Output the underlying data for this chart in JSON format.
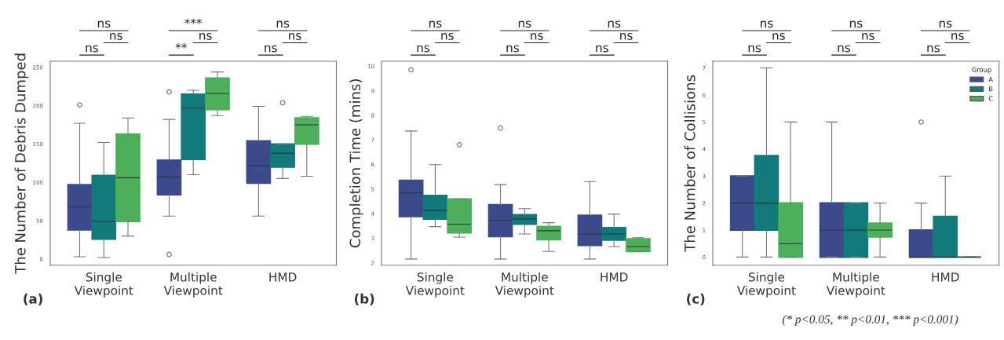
{
  "chart_data": [
    {
      "type": "box",
      "title": "(a)",
      "ylabel": "The Number of Debris Dumped",
      "categories": [
        "Single\nViewpoint",
        "Multiple\nViewpoint",
        "HMD"
      ],
      "ylim": [
        -8,
        258
      ],
      "yticks": [
        0,
        50,
        100,
        150,
        200,
        250
      ],
      "grid": false,
      "legend": false,
      "annotations": [
        "ns",
        "ns",
        "ns",
        "***",
        "ns",
        "**",
        "ns",
        "ns",
        "ns"
      ],
      "series": [
        {
          "color": "#3b4a8a",
          "boxes": [
            {
              "low": 3,
              "q1": 38,
              "median": 68,
              "q3": 97,
              "high": 177,
              "outliers": [
                201
              ]
            },
            {
              "low": 56,
              "q1": 84,
              "median": 107,
              "q3": 129,
              "high": 182,
              "outliers": [
                218,
                6
              ]
            },
            {
              "low": 56,
              "q1": 99,
              "median": 122,
              "q3": 154,
              "high": 199
            }
          ]
        },
        {
          "color": "#117a7a",
          "boxes": [
            {
              "low": 2,
              "q1": 26,
              "median": 49,
              "q3": 109,
              "high": 152
            },
            {
              "low": 110,
              "q1": 130,
              "median": 197,
              "q3": 215,
              "high": 220
            },
            {
              "low": 105,
              "q1": 120,
              "median": 138,
              "q3": 150,
              "high": 150,
              "outliers": [
                204
              ]
            }
          ]
        },
        {
          "color": "#4caf5a",
          "boxes": [
            {
              "low": 30,
              "q1": 49,
              "median": 106,
              "q3": 163,
              "high": 184
            },
            {
              "low": 187,
              "q1": 195,
              "median": 216,
              "q3": 236,
              "high": 244
            },
            {
              "low": 108,
              "q1": 150,
              "median": 175,
              "q3": 184,
              "high": 186
            }
          ]
        }
      ]
    },
    {
      "type": "box",
      "title": "(b)",
      "ylabel": "Completion Time (mins)",
      "categories": [
        "Single\nViewpoint",
        "Multiple\nViewpoint",
        "HMD"
      ],
      "ylim": [
        1.9,
        10.2
      ],
      "yticks": [
        2,
        3,
        4,
        5,
        6,
        7,
        8,
        9,
        10
      ],
      "grid": false,
      "legend": false,
      "annotations": [
        "ns",
        "ns",
        "ns",
        "ns",
        "ns",
        "ns",
        "ns",
        "ns",
        "ns"
      ],
      "series": [
        {
          "color": "#3b4a8a",
          "boxes": [
            {
              "low": 2.15,
              "q1": 3.88,
              "median": 4.84,
              "q3": 5.35,
              "high": 7.36,
              "outliers": [
                9.85
              ]
            },
            {
              "low": 2.15,
              "q1": 3.07,
              "median": 3.73,
              "q3": 4.36,
              "high": 5.18,
              "outliers": [
                7.48
              ]
            },
            {
              "low": 2.15,
              "q1": 2.71,
              "median": 3.17,
              "q3": 3.93,
              "high": 5.3
            }
          ]
        },
        {
          "color": "#117a7a",
          "boxes": [
            {
              "low": 3.47,
              "q1": 3.78,
              "median": 4.14,
              "q3": 4.73,
              "high": 5.99
            },
            {
              "low": 3.17,
              "q1": 3.57,
              "median": 3.78,
              "q3": 3.95,
              "high": 4.2
            },
            {
              "low": 2.66,
              "q1": 2.92,
              "median": 3.17,
              "q3": 3.42,
              "high": 3.98
            }
          ]
        },
        {
          "color": "#4caf5a",
          "boxes": [
            {
              "low": 3.04,
              "q1": 3.22,
              "median": 3.57,
              "q3": 4.59,
              "high": 4.6,
              "outliers": [
                6.8
              ]
            },
            {
              "low": 2.46,
              "q1": 2.94,
              "median": 3.3,
              "q3": 3.47,
              "high": 3.63
            },
            {
              "low": 2.46,
              "q1": 2.46,
              "median": 2.66,
              "q3": 2.97,
              "high": 3.02
            }
          ]
        }
      ]
    },
    {
      "type": "box",
      "title": "(c)",
      "ylabel": "The Number of Collisions",
      "categories": [
        "Single\nViewpoint",
        "Multiple\nViewpoint",
        "HMD"
      ],
      "ylim": [
        -0.3,
        7.25
      ],
      "yticks": [
        0,
        1,
        2,
        3,
        4,
        5,
        6,
        7
      ],
      "grid": false,
      "legend": "top right",
      "legend_title": "Group",
      "annotations": [
        "ns",
        "ns",
        "ns",
        "ns",
        "ns",
        "ns",
        "ns",
        "ns",
        "ns",
        "(* p<0.05, ** p<0.01, *** p<0.001)"
      ],
      "series": [
        {
          "name": "A",
          "color": "#3b4a8a",
          "boxes": [
            {
              "low": 0,
              "q1": 1,
              "median": 2,
              "q3": 3,
              "high": 3
            },
            {
              "low": 0,
              "q1": 0,
              "median": 1,
              "q3": 2,
              "high": 5
            },
            {
              "low": 0,
              "q1": 0,
              "median": 0,
              "q3": 1,
              "high": 2,
              "outliers": [
                5
              ]
            }
          ]
        },
        {
          "name": "B",
          "color": "#117a7a",
          "boxes": [
            {
              "low": 0,
              "q1": 1,
              "median": 2,
              "q3": 3.75,
              "high": 7
            },
            {
              "low": 0,
              "q1": 0,
              "median": 1,
              "q3": 2,
              "high": 2
            },
            {
              "low": 0,
              "q1": 0,
              "median": 0,
              "q3": 1.5,
              "high": 3
            }
          ]
        },
        {
          "name": "C",
          "color": "#4caf5a",
          "boxes": [
            {
              "low": 0,
              "q1": 0,
              "median": 0.5,
              "q3": 2,
              "high": 5
            },
            {
              "low": 0,
              "q1": 0.75,
              "median": 1,
              "q3": 1.25,
              "high": 2
            },
            {
              "low": 0,
              "q1": 0,
              "median": 0,
              "q3": 0,
              "high": 0
            }
          ]
        }
      ]
    }
  ]
}
